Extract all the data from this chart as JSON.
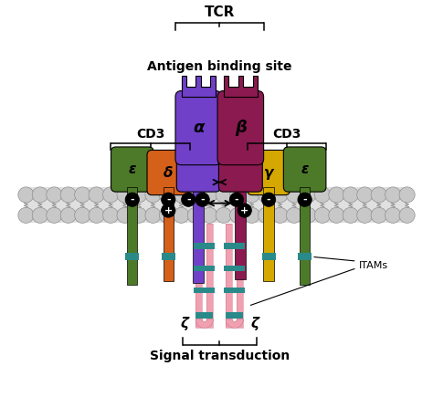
{
  "title": "TCR",
  "subtitle": "Antigen binding site",
  "cd3_label": "CD3",
  "signal_label": "Signal transduction",
  "itams_label": "ITAMs",
  "colors": {
    "epsilon_green": "#4d7a28",
    "delta_orange": "#d4601a",
    "alpha_purple": "#7040c8",
    "beta_maroon": "#8b1a50",
    "gamma_yellow": "#d4a800",
    "zeta_pink": "#f0a0b0",
    "zeta_teal": "#2a8a8a",
    "membrane_gray": "#c8c8c8",
    "background": "#ffffff",
    "charge_black": "#111111"
  },
  "figsize": [
    4.74,
    4.47
  ],
  "dpi": 100
}
